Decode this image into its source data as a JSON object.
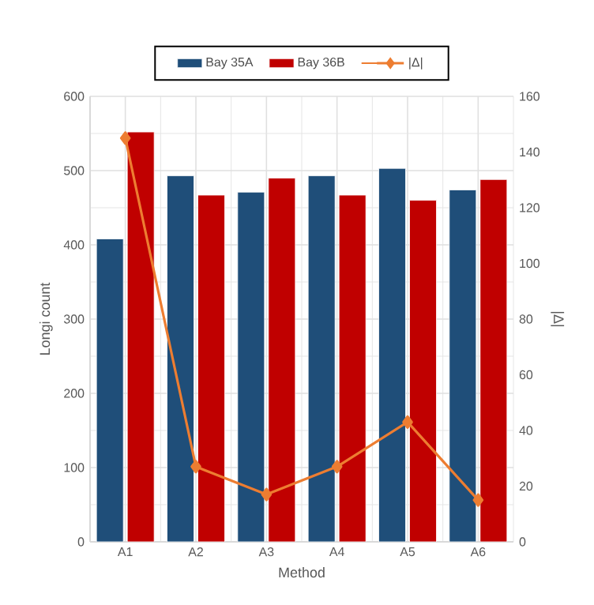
{
  "chart_data": {
    "type": "bar",
    "xlabel": "Method",
    "ylabel": "Longi count",
    "y2label": "|Δ|",
    "categories": [
      "A1",
      "A2",
      "A3",
      "A4",
      "A5",
      "A6"
    ],
    "series": [
      {
        "name": "Bay 35A",
        "color": "#1f4e79",
        "values": [
          408,
          493,
          471,
          493,
          503,
          474
        ]
      },
      {
        "name": "Bay 36B",
        "color": "#c00000",
        "values": [
          552,
          467,
          490,
          467,
          460,
          488
        ]
      },
      {
        "name": "|Δ|",
        "type": "line",
        "axis": "y2",
        "marker": "diamond",
        "color": "#ed7d31",
        "values": [
          145,
          27,
          17,
          27,
          43,
          15
        ]
      }
    ],
    "ylim": [
      0,
      600
    ],
    "yticks": [
      0,
      100,
      200,
      300,
      400,
      500,
      600
    ],
    "y2lim": [
      0,
      160
    ],
    "y2ticks": [
      0,
      20,
      40,
      60,
      80,
      100,
      120,
      140,
      160
    ],
    "grid": true,
    "legend": "top"
  }
}
